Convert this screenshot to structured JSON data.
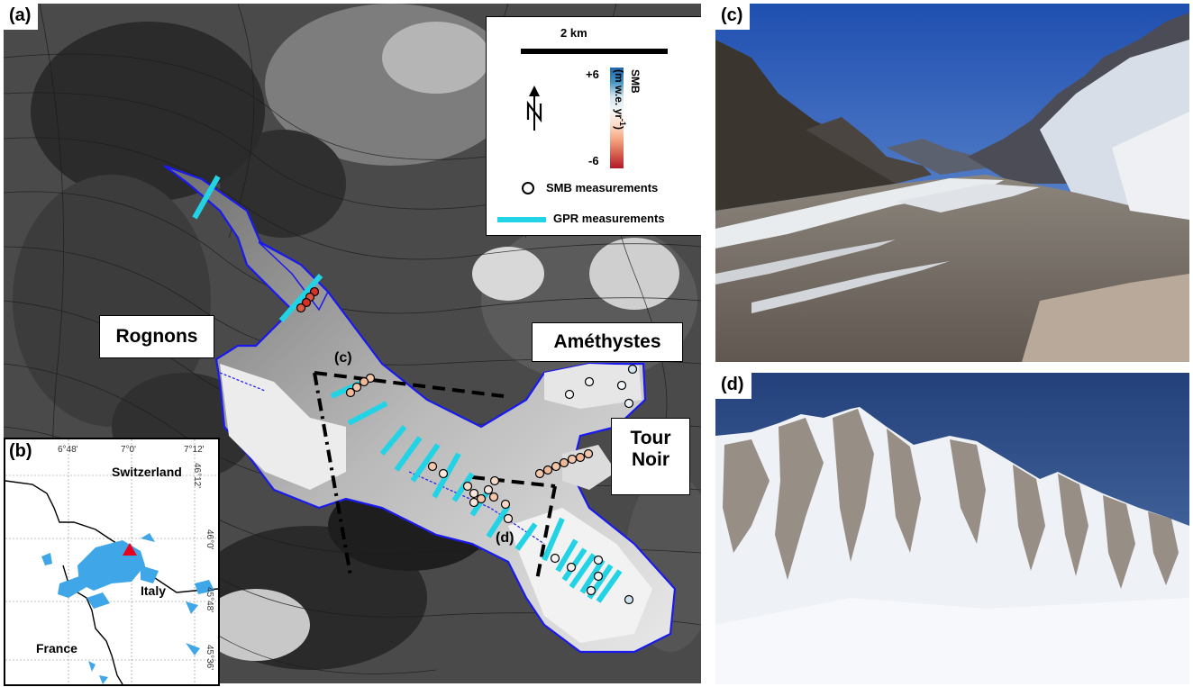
{
  "panels": {
    "a": "(a)",
    "b": "(b)",
    "c": "(c)",
    "d": "(d)"
  },
  "map_labels": {
    "rognons": "Rognons",
    "amethystes": "Améthystes",
    "tour_noir_line1": "Tour",
    "tour_noir_line2": "Noir",
    "view_c": "(c)",
    "view_d": "(d)"
  },
  "legend": {
    "scale": "2 km",
    "colorbar_max": "+6",
    "colorbar_min": "-6",
    "colorbar_title": "SMB",
    "colorbar_units": "(m w.e. yr",
    "colorbar_units_sup": "-1",
    "colorbar_units_end": ")",
    "north": "N",
    "smb_label": "SMB measurements",
    "gpr_label": "GPR measurements"
  },
  "inset": {
    "switzerland": "Switzerland",
    "italy": "Italy",
    "france": "France",
    "lon_ticks": [
      "6°48'",
      "7°0'",
      "7°12'"
    ],
    "lat_ticks": [
      "46°12'",
      "46°0'",
      "45°48'",
      "45°36'"
    ]
  },
  "colors": {
    "glacier_outline": "#1a1aee",
    "gpr": "#22d3e6",
    "smb_negative": "#d73027",
    "smb_positive": "#4393c3",
    "inset_glacier": "#3fa6e8",
    "site_marker": "#e8001c"
  }
}
